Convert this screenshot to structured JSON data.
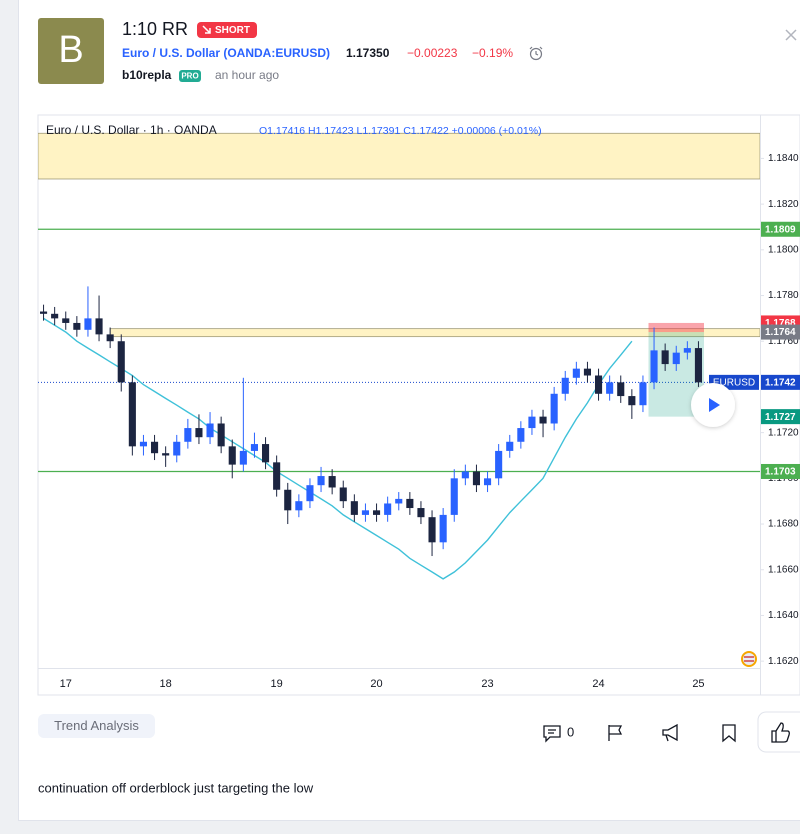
{
  "header": {
    "avatar": "B",
    "title": "1:10 RR",
    "badge": "SHORT",
    "symbol": "Euro / U.S. Dollar (OANDA:EURUSD)",
    "price": "1.17350",
    "change": "−0.00223",
    "change_pct": "−0.19%",
    "author": "b10repla",
    "author_badge": "PRO",
    "time": "an hour ago"
  },
  "chart_data": {
    "type": "candlestick",
    "title": "Euro / U.S. Dollar · 1h · OANDA",
    "legend": "O1.17416 H1.17423 L1.17391 C1.17422 +0.00006 (+0.01%)",
    "categories": [
      null,
      null,
      "17",
      null,
      null,
      null,
      null,
      null,
      null,
      null,
      null,
      "18",
      null,
      null,
      null,
      null,
      null,
      null,
      null,
      null,
      null,
      "19",
      null,
      null,
      null,
      null,
      null,
      null,
      null,
      null,
      "20",
      null,
      null,
      null,
      null,
      null,
      null,
      null,
      null,
      null,
      "23",
      null,
      null,
      null,
      null,
      null,
      null,
      null,
      null,
      null,
      "24",
      null,
      null,
      null,
      null,
      null,
      null,
      null,
      null,
      "25"
    ],
    "open": [
      1.1773,
      1.1772,
      1.177,
      1.1768,
      1.1765,
      1.177,
      1.1763,
      1.176,
      1.1742,
      1.1714,
      1.1716,
      1.1711,
      1.171,
      1.1716,
      1.1722,
      1.1718,
      1.1724,
      1.1714,
      1.1706,
      1.1712,
      1.1715,
      1.1707,
      1.1695,
      1.1686,
      1.169,
      1.1697,
      1.1701,
      1.1696,
      1.169,
      1.1684,
      1.1686,
      1.1684,
      1.1689,
      1.1691,
      1.1687,
      1.1683,
      1.1672,
      1.1684,
      1.17,
      1.1703,
      1.1697,
      1.17,
      1.1712,
      1.1716,
      1.1722,
      1.1727,
      1.1724,
      1.1737,
      1.1744,
      1.1748,
      1.1745,
      1.1737,
      1.1742,
      1.1736,
      1.1732,
      1.1742,
      1.1756,
      1.175,
      1.1755,
      1.1757
    ],
    "high": [
      1.1776,
      1.1775,
      1.1773,
      1.1771,
      1.1784,
      1.178,
      1.1766,
      1.1763,
      1.1745,
      1.1719,
      1.1719,
      1.1714,
      1.1719,
      1.1726,
      1.1728,
      1.1729,
      1.1727,
      1.1717,
      1.1744,
      1.172,
      1.1718,
      1.171,
      1.1698,
      1.1693,
      1.17,
      1.1705,
      1.1704,
      1.1699,
      1.1693,
      1.1689,
      1.1689,
      1.1692,
      1.1694,
      1.1694,
      1.169,
      1.1686,
      1.1687,
      1.1704,
      1.1706,
      1.1706,
      1.1703,
      1.1715,
      1.1719,
      1.1725,
      1.173,
      1.173,
      1.174,
      1.1747,
      1.1751,
      1.1751,
      1.1748,
      1.1745,
      1.1745,
      1.1739,
      1.1745,
      1.1766,
      1.1759,
      1.1758,
      1.176,
      1.176
    ],
    "low": [
      1.1769,
      1.1767,
      1.1765,
      1.1762,
      1.1762,
      1.176,
      1.1757,
      1.1738,
      1.171,
      1.171,
      1.1708,
      1.1705,
      1.1707,
      1.1713,
      1.1715,
      1.1715,
      1.1711,
      1.17,
      1.1703,
      1.1709,
      1.1704,
      1.1692,
      1.168,
      1.1683,
      1.1687,
      1.1694,
      1.1693,
      1.1687,
      1.1681,
      1.1681,
      1.1681,
      1.1681,
      1.1686,
      1.1684,
      1.168,
      1.1666,
      1.1669,
      1.1681,
      1.1697,
      1.1694,
      1.1694,
      1.1697,
      1.1709,
      1.1713,
      1.1719,
      1.1718,
      1.1721,
      1.1734,
      1.1741,
      1.1742,
      1.1734,
      1.1734,
      1.1733,
      1.1726,
      1.1729,
      1.1739,
      1.1747,
      1.1747,
      1.1752,
      1.174
    ],
    "close": [
      1.1772,
      1.177,
      1.1768,
      1.1765,
      1.177,
      1.1763,
      1.176,
      1.1742,
      1.1714,
      1.1716,
      1.1711,
      1.171,
      1.1716,
      1.1722,
      1.1718,
      1.1724,
      1.1714,
      1.1706,
      1.1712,
      1.1715,
      1.1707,
      1.1695,
      1.1686,
      1.169,
      1.1697,
      1.1701,
      1.1696,
      1.169,
      1.1684,
      1.1686,
      1.1684,
      1.1689,
      1.1691,
      1.1687,
      1.1683,
      1.1672,
      1.1684,
      1.17,
      1.1703,
      1.1697,
      1.17,
      1.1712,
      1.1716,
      1.1722,
      1.1727,
      1.1724,
      1.1737,
      1.1744,
      1.1748,
      1.1745,
      1.1737,
      1.1742,
      1.1736,
      1.1732,
      1.1742,
      1.1756,
      1.175,
      1.1755,
      1.1757,
      1.1742
    ],
    "up_color": "#2962ff",
    "down_color": "#1c2541",
    "overlay": {
      "color": "#3fc1d9",
      "values": [
        1.177,
        1.1767,
        1.1764,
        1.176,
        1.1757,
        1.1754,
        1.1751,
        1.1748,
        1.1745,
        1.1741,
        1.1738,
        1.1735,
        1.1732,
        1.1729,
        1.1726,
        1.1722,
        1.1719,
        1.1716,
        1.1713,
        1.171,
        1.1707,
        1.1703,
        1.17,
        1.1697,
        1.1694,
        1.1691,
        1.1688,
        1.1684,
        1.1681,
        1.1678,
        1.1675,
        1.1672,
        1.1669,
        1.1665,
        1.1662,
        1.1659,
        1.1656,
        1.1659,
        1.1663,
        1.1668,
        1.1673,
        1.1679,
        1.1685,
        1.169,
        1.1695,
        1.17,
        1.1709,
        1.1718,
        1.1726,
        1.1733,
        1.1741,
        1.1748,
        1.1754,
        1.176,
        null,
        null,
        null,
        null,
        null,
        null
      ]
    },
    "zones": [
      {
        "from": 1.1851,
        "to": 1.1831,
        "color": "#fff3c4"
      },
      {
        "from": 1.17655,
        "to": 1.1762,
        "color": "#fff3c4",
        "start_index": 6
      }
    ],
    "levels": [
      {
        "value": 1.1809,
        "color": "#4caf50",
        "line": true
      },
      {
        "value": 1.1768,
        "color": "#f23645",
        "line": false
      },
      {
        "value": 1.1764,
        "color": "#787b86",
        "line": false
      },
      {
        "value": 1.1727,
        "color": "#089981",
        "line": false
      },
      {
        "value": 1.1703,
        "color": "#4caf50",
        "line": true
      }
    ],
    "last": {
      "value": 1.1742,
      "symbol": "EURUSD",
      "color": "#1848cc"
    },
    "position": {
      "entry": 1.1764,
      "stop": 1.1768,
      "target": 1.1727,
      "start_index": 55,
      "end_index": 59
    },
    "ylim": [
      1.1617,
      1.1859
    ],
    "yticks": [
      {
        "value": 1.184,
        "label": "1.1840"
      },
      {
        "value": 1.182,
        "label": "1.1820"
      },
      {
        "value": 1.18,
        "label": "1.1800"
      },
      {
        "value": 1.178,
        "label": "1.1780"
      },
      {
        "value": 1.176,
        "label": "1.1760"
      },
      {
        "value": 1.172,
        "label": "1.1720"
      },
      {
        "value": 1.17,
        "label": "1.1700"
      },
      {
        "value": 1.168,
        "label": "1.1680"
      },
      {
        "value": 1.166,
        "label": "1.1660"
      },
      {
        "value": 1.164,
        "label": "1.1640"
      },
      {
        "value": 1.162,
        "label": "1.1620"
      }
    ],
    "grid": false
  },
  "tag": "Trend Analysis",
  "comments": "0",
  "description": "continuation off orderblock just targeting the low"
}
